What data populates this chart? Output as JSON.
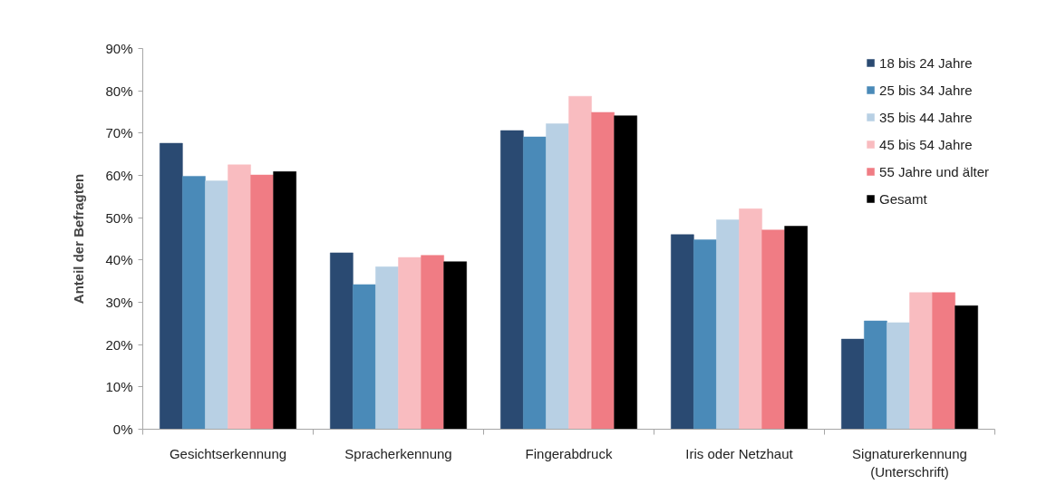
{
  "chart_data": {
    "type": "bar",
    "ylabel": "Anteil der Befragten",
    "categories": [
      "Gesichtserkennung",
      "Spracherkennung",
      "Fingerabdruck",
      "Iris oder Netzhaut",
      "Signaturerkennung\n(Unterschrift)"
    ],
    "series": [
      {
        "name": "18 bis 24 Jahre",
        "color": "#2a4a72",
        "values": [
          67.6,
          41.7,
          70.6,
          46.0,
          21.3
        ]
      },
      {
        "name": "25 bis 34 Jahre",
        "color": "#4a8ab8",
        "values": [
          59.8,
          34.2,
          69.1,
          44.8,
          25.6
        ]
      },
      {
        "name": "35 bis 44 Jahre",
        "color": "#b8d0e4",
        "values": [
          58.7,
          38.4,
          72.2,
          49.5,
          25.2
        ]
      },
      {
        "name": "45 bis 54 Jahre",
        "color": "#f9bcc0",
        "values": [
          62.5,
          40.6,
          78.7,
          52.1,
          32.3
        ]
      },
      {
        "name": "55 Jahre und älter",
        "color": "#f07c84",
        "values": [
          60.1,
          41.1,
          74.9,
          47.1,
          32.3
        ]
      },
      {
        "name": "Gesamt",
        "color": "#000000",
        "values": [
          60.9,
          39.6,
          74.1,
          48.0,
          29.2
        ]
      }
    ],
    "ylim": [
      0,
      90
    ],
    "yticks": [
      {
        "value": 0,
        "label": "0%"
      },
      {
        "value": 10,
        "label": "10%"
      },
      {
        "value": 20,
        "label": "20%"
      },
      {
        "value": 30,
        "label": "30%"
      },
      {
        "value": 40,
        "label": "40%"
      },
      {
        "value": 50,
        "label": "50%"
      },
      {
        "value": 60,
        "label": "60%"
      },
      {
        "value": 70,
        "label": "70%"
      },
      {
        "value": 80,
        "label": "80%"
      },
      {
        "value": 90,
        "label": "90%"
      }
    ],
    "legend": "top right"
  }
}
